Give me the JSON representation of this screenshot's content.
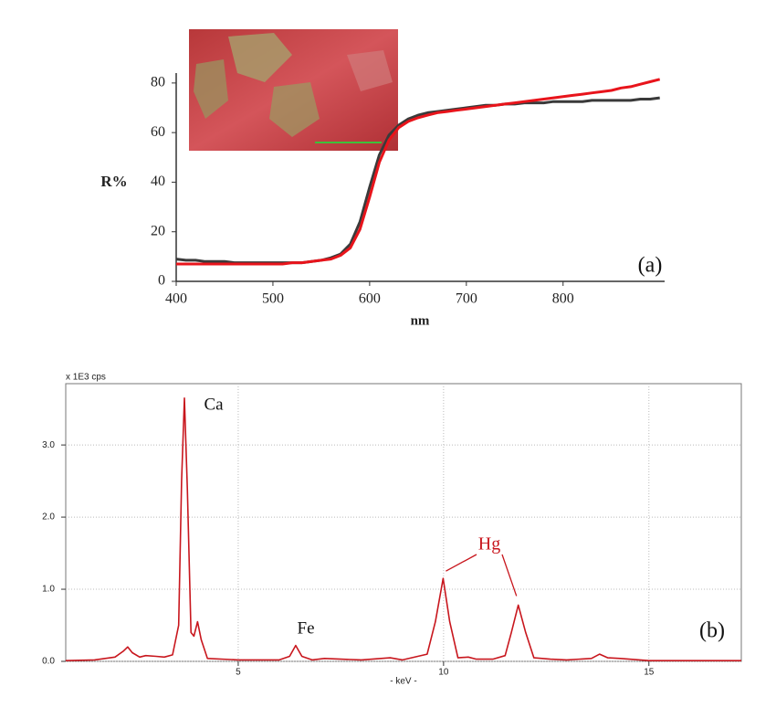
{
  "chart_data": [
    {
      "type": "line",
      "y_label": "R%",
      "x_label": "nm",
      "x": [
        400,
        410,
        420,
        430,
        440,
        450,
        460,
        470,
        480,
        490,
        500,
        510,
        520,
        530,
        540,
        550,
        560,
        570,
        580,
        590,
        600,
        610,
        620,
        630,
        640,
        650,
        660,
        670,
        680,
        690,
        700,
        710,
        720,
        730,
        740,
        750,
        760,
        770,
        780,
        790,
        800,
        810,
        820,
        830,
        840,
        850,
        860,
        870,
        880,
        890,
        900
      ],
      "series": [
        {
          "color": "#3a3a3a",
          "values": [
            9,
            8.5,
            8.5,
            8,
            8,
            8,
            7.5,
            7.5,
            7.5,
            7.5,
            7.5,
            7.5,
            7.5,
            7.5,
            8,
            8.5,
            9.5,
            11,
            15,
            24,
            38,
            51,
            59,
            63,
            65.5,
            67,
            68,
            68.5,
            69,
            69.5,
            70,
            70.5,
            71,
            71,
            71.5,
            71.5,
            72,
            72,
            72,
            72.5,
            72.5,
            72.5,
            72.5,
            73,
            73,
            73,
            73,
            73,
            73.5,
            73.5,
            74
          ]
        },
        {
          "color": "#e8141b",
          "values": [
            7,
            7,
            7,
            7,
            7,
            7,
            7,
            7,
            7,
            7,
            7,
            7,
            7.5,
            7.5,
            8,
            8.5,
            9,
            10.5,
            13.5,
            21,
            34,
            48,
            57,
            62,
            64.5,
            66,
            67,
            68,
            68.5,
            69,
            69.5,
            70,
            70.5,
            71,
            71.5,
            72,
            72.5,
            73,
            73.5,
            74,
            74.5,
            75,
            75.5,
            76,
            76.5,
            77,
            78,
            78.5,
            79.5,
            80.5,
            81.5
          ]
        }
      ],
      "xlim": [
        400,
        905
      ],
      "xticks": [
        400,
        500,
        600,
        700,
        800
      ],
      "ylim": [
        0,
        84
      ],
      "yticks": [
        0,
        20,
        40,
        60,
        80
      ],
      "grid": false,
      "annotations": [
        {
          "text": "(a)"
        }
      ]
    },
    {
      "type": "line",
      "y_label": "x 1E3 cps",
      "x_label": "- keV -",
      "x": [
        0.8,
        1.5,
        2.0,
        2.2,
        2.31,
        2.42,
        2.6,
        2.75,
        3.0,
        3.2,
        3.4,
        3.55,
        3.62,
        3.69,
        3.76,
        3.85,
        3.92,
        4.01,
        4.1,
        4.25,
        5,
        6.0,
        6.25,
        6.4,
        6.55,
        6.8,
        7.1,
        7.5,
        8.0,
        8.7,
        9.0,
        9.6,
        9.8,
        9.99,
        10.15,
        10.35,
        10.6,
        10.8,
        11.2,
        11.5,
        11.65,
        11.82,
        12.0,
        12.2,
        12.6,
        13.0,
        13.6,
        13.8,
        14.0,
        14.3,
        15,
        16,
        17.25
      ],
      "series": [
        {
          "color": "#c8161d",
          "values": [
            0.01,
            0.02,
            0.06,
            0.14,
            0.2,
            0.12,
            0.06,
            0.08,
            0.07,
            0.06,
            0.09,
            0.5,
            2.5,
            3.65,
            2.4,
            0.4,
            0.35,
            0.55,
            0.3,
            0.04,
            0.02,
            0.02,
            0.07,
            0.22,
            0.07,
            0.02,
            0.04,
            0.03,
            0.02,
            0.05,
            0.02,
            0.1,
            0.55,
            1.15,
            0.55,
            0.05,
            0.06,
            0.03,
            0.03,
            0.08,
            0.4,
            0.78,
            0.4,
            0.05,
            0.03,
            0.02,
            0.04,
            0.1,
            0.05,
            0.04,
            0.01,
            0.01,
            0.01
          ]
        }
      ],
      "xlim": [
        0.8,
        17.25
      ],
      "xticks": [
        5,
        10,
        15
      ],
      "ylim": [
        0,
        3.85
      ],
      "yticks": [
        {
          "value": 0,
          "label": "0.0"
        },
        {
          "value": 1,
          "label": "1.0"
        },
        {
          "value": 2,
          "label": "2.0"
        },
        {
          "value": 3,
          "label": "3.0"
        }
      ],
      "grid": true,
      "annotations": [
        {
          "text": "Ca"
        },
        {
          "text": "Fe"
        },
        {
          "text": "Hg",
          "color": "#c8161d"
        },
        {
          "text": "(b)"
        }
      ]
    }
  ]
}
